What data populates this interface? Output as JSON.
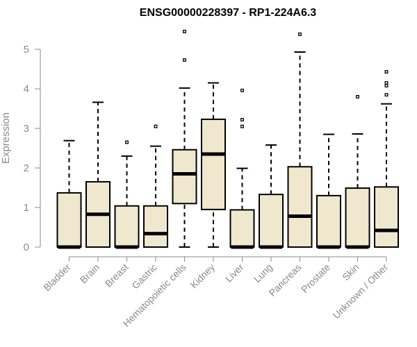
{
  "chart_data": {
    "type": "box",
    "title": "ENSG00000228397 - RP1-224A6.3",
    "xlabel": "",
    "ylabel": "Expression",
    "ylim": [
      0,
      5.5
    ],
    "yticks": [
      0,
      1,
      2,
      3,
      4,
      5
    ],
    "box_fill": "#efe8cf",
    "stroke_color": "#000000",
    "axis_color": "#8a8a8a",
    "categories": [
      "Bladder",
      "Brain",
      "Breast",
      "Gastric",
      "Hematopoietic cells",
      "Kidney",
      "Liver",
      "Lung",
      "Pancreas",
      "Prostate",
      "Skin",
      "Unknown / Other"
    ],
    "boxes": [
      {
        "category": "Bladder",
        "whisker_low": 0,
        "q1": 0,
        "median": 0,
        "q3": 1.37,
        "whisker_high": 2.69,
        "outliers": []
      },
      {
        "category": "Brain",
        "whisker_low": 0,
        "q1": 0,
        "median": 0.83,
        "q3": 1.65,
        "whisker_high": 3.66,
        "outliers": []
      },
      {
        "category": "Breast",
        "whisker_low": 0,
        "q1": 0,
        "median": 0,
        "q3": 1.04,
        "whisker_high": 2.3,
        "outliers": [
          2.65
        ]
      },
      {
        "category": "Gastric",
        "whisker_low": 0,
        "q1": 0,
        "median": 0.34,
        "q3": 1.04,
        "whisker_high": 2.55,
        "outliers": [
          3.05
        ]
      },
      {
        "category": "Hematopoietic cells",
        "whisker_low": 0,
        "q1": 1.1,
        "median": 1.85,
        "q3": 2.46,
        "whisker_high": 4.02,
        "outliers": [
          4.73,
          5.45
        ]
      },
      {
        "category": "Kidney",
        "whisker_low": 0,
        "q1": 0.95,
        "median": 2.35,
        "q3": 3.23,
        "whisker_high": 4.15,
        "outliers": []
      },
      {
        "category": "Liver",
        "whisker_low": 0,
        "q1": 0,
        "median": 0,
        "q3": 0.94,
        "whisker_high": 1.99,
        "outliers": [
          3.05,
          3.22,
          3.96
        ]
      },
      {
        "category": "Lung",
        "whisker_low": 0,
        "q1": 0,
        "median": 0,
        "q3": 1.33,
        "whisker_high": 2.58,
        "outliers": []
      },
      {
        "category": "Pancreas",
        "whisker_low": 0,
        "q1": 0,
        "median": 0.78,
        "q3": 2.03,
        "whisker_high": 4.93,
        "outliers": [
          5.38
        ]
      },
      {
        "category": "Prostate",
        "whisker_low": 0,
        "q1": 0,
        "median": 0,
        "q3": 1.3,
        "whisker_high": 2.85,
        "outliers": []
      },
      {
        "category": "Skin",
        "whisker_low": 0,
        "q1": 0,
        "median": 0,
        "q3": 1.49,
        "whisker_high": 2.86,
        "outliers": [
          3.8
        ]
      },
      {
        "category": "Unknown / Other",
        "whisker_low": 0,
        "q1": 0,
        "median": 0.42,
        "q3": 1.52,
        "whisker_high": 3.62,
        "outliers": [
          3.85,
          4.08,
          4.15,
          4.43
        ]
      }
    ]
  }
}
